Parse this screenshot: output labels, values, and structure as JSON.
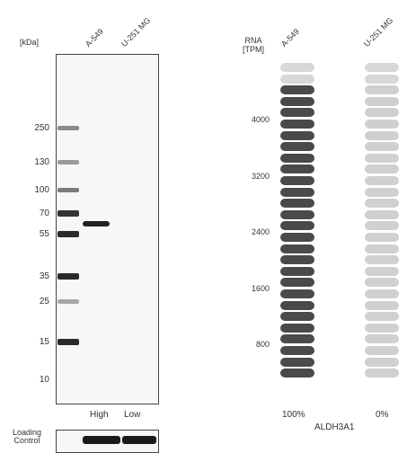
{
  "western_blot": {
    "unit_label": "[kDa]",
    "lanes": [
      "A-549",
      "U-251 MG"
    ],
    "markers": [
      "250",
      "130",
      "100",
      "70",
      "55",
      "35",
      "25",
      "15",
      "10"
    ],
    "expression_labels": [
      "High",
      "Low"
    ],
    "loading_control_label": "Loading\nControl"
  },
  "rna": {
    "header": "RNA\n[TPM]",
    "columns": [
      "A-549",
      "U-251 MG"
    ],
    "ticks": [
      "4000",
      "3200",
      "2400",
      "1600",
      "800"
    ],
    "percents": [
      "100%",
      "0%"
    ],
    "gene": "ALDH3A1",
    "colors": {
      "high": "#4a4a4a",
      "low": "#d0d0d0",
      "top": "#d8d8d8"
    },
    "a549_level": 1.0,
    "u251_level": 0.0
  }
}
